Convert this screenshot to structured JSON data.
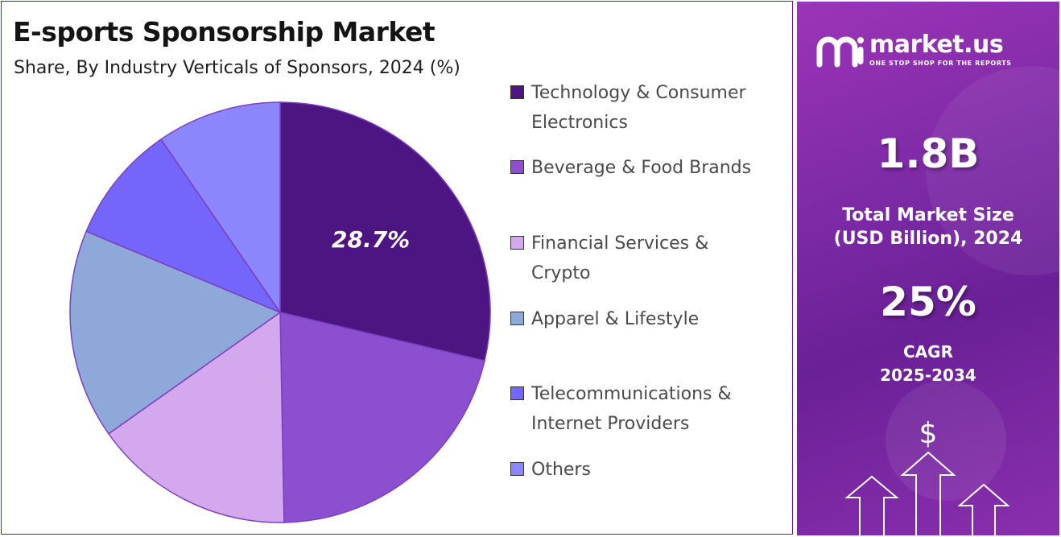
{
  "header": {
    "title": "E-sports Sponsorship Market",
    "subtitle": "Share, By Industry Verticals of Sponsors, 2024 (%)"
  },
  "chart_data": {
    "type": "pie",
    "categories": [
      "Technology & Consumer Electronics",
      "Beverage & Food Brands",
      "Financial Services & Crypto",
      "Apparel & Lifestyle",
      "Telecommunications & Internet Providers",
      "Others"
    ],
    "values": [
      28.7,
      21.0,
      15.5,
      16.1,
      9.1,
      9.6
    ],
    "colors": [
      "#4c1582",
      "#8b4fd0",
      "#d3a8ec",
      "#8ea8da",
      "#7566fb",
      "#8b86fb"
    ],
    "data_labels": [
      "28.7%",
      "",
      "",
      "",
      "",
      ""
    ],
    "legend_position": "right",
    "start_angle_deg": 0,
    "direction": "clockwise"
  },
  "legend": {
    "items": [
      {
        "label": "Technology & Consumer Electronics",
        "color": "#4c1582"
      },
      {
        "label": "Beverage & Food Brands",
        "color": "#8b4fd0"
      },
      {
        "label": "Financial Services & Crypto",
        "color": "#d3a8ec"
      },
      {
        "label": "Apparel & Lifestyle",
        "color": "#8ea8da"
      },
      {
        "label": "Telecommunications & Internet Providers",
        "color": "#7566fb"
      },
      {
        "label": "Others",
        "color": "#8b86fb"
      }
    ]
  },
  "sidebar": {
    "brand_name": "market.us",
    "brand_tagline": "ONE STOP SHOP FOR THE REPORTS",
    "market_size_value": "1.8B",
    "market_size_label_line1": "Total Market Size",
    "market_size_label_line2": "(USD Billion), 2024",
    "cagr_value": "25%",
    "cagr_label_line1": "CAGR",
    "cagr_label_line2": "2025-2034",
    "dollar_symbol": "$",
    "logo_icon": "market-us-logo-icon",
    "growth_icon": "growth-arrows-icon",
    "accent_color": "#8a2fae"
  }
}
